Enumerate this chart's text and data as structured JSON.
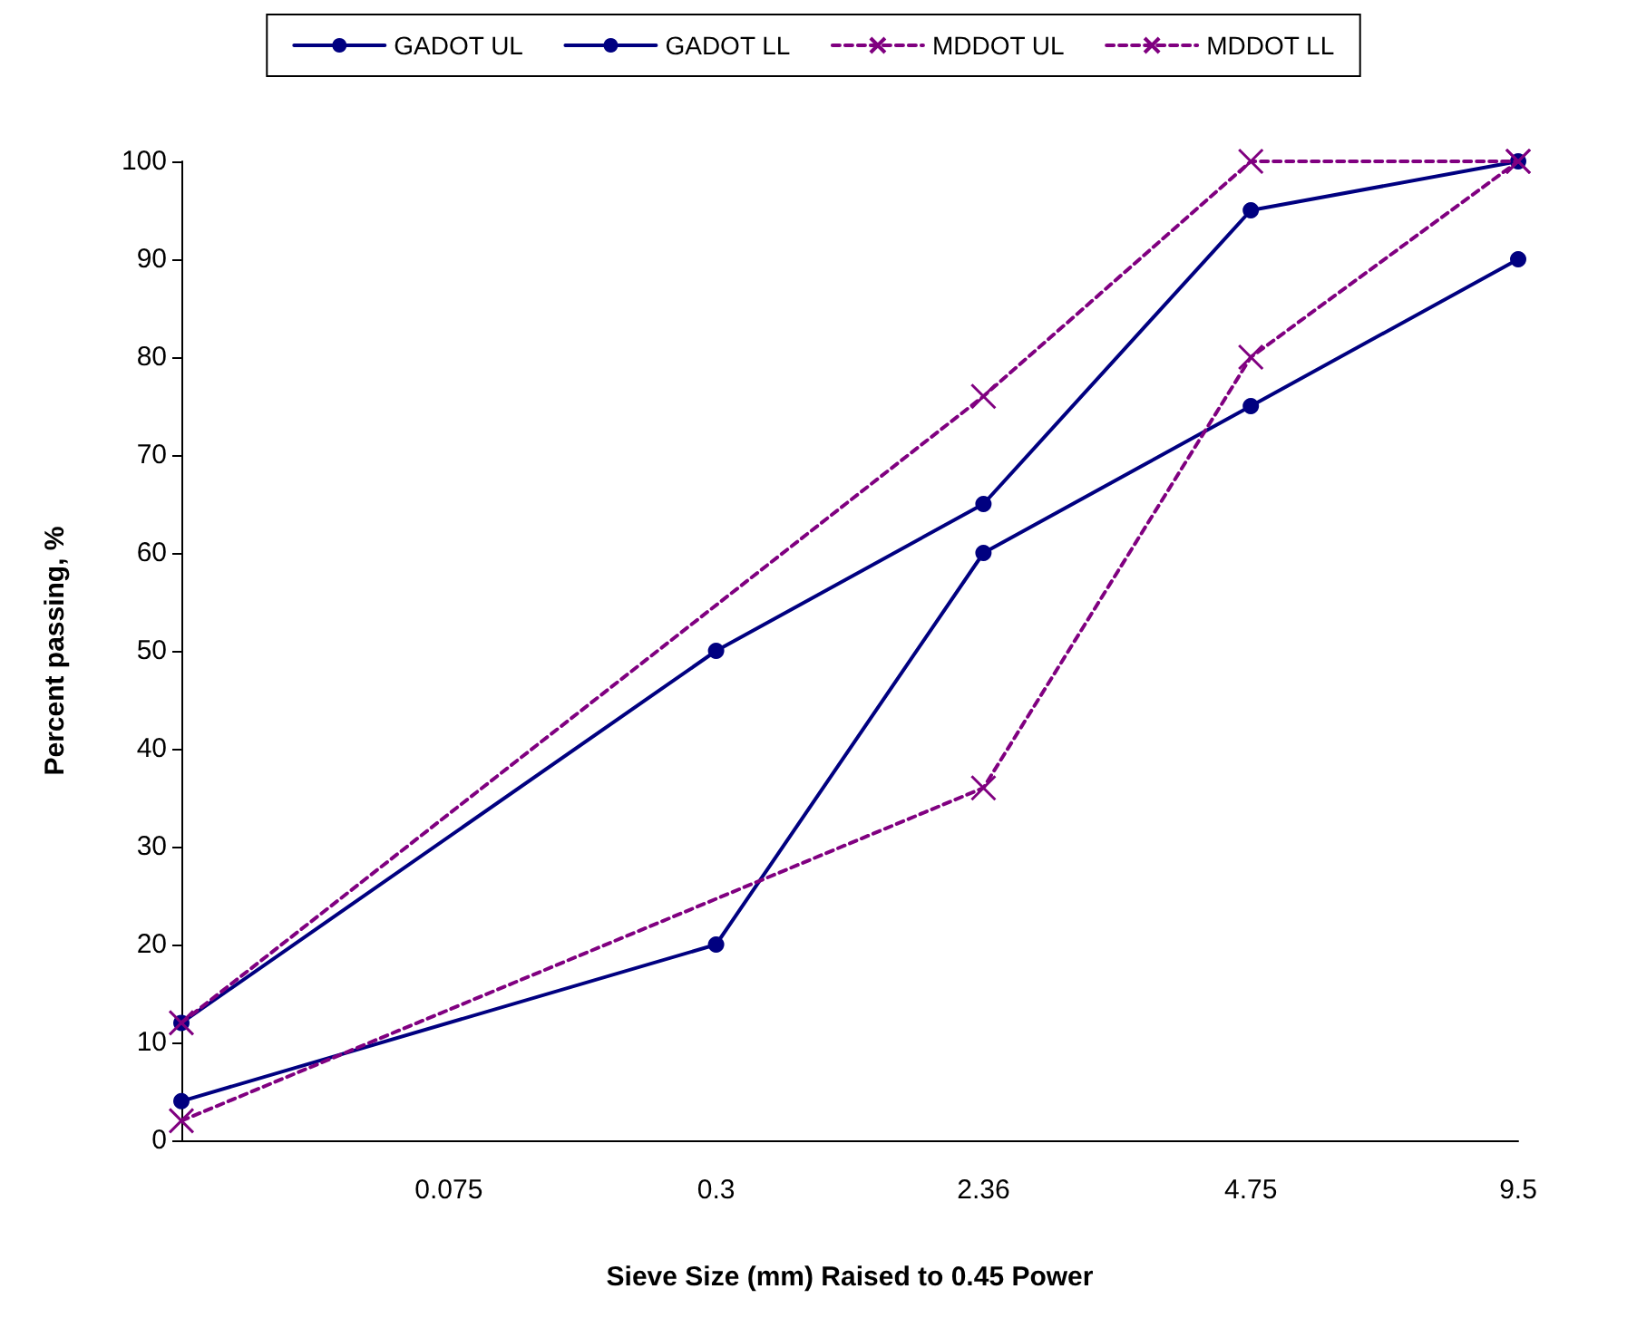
{
  "chart_data": {
    "type": "line",
    "xlabel": "Sieve Size (mm) Raised to 0.45 Power",
    "ylabel": "Percent passing, %",
    "categories": [
      null,
      "0.075",
      "0.3",
      "2.36",
      "4.75",
      "9.5"
    ],
    "ylim": [
      0,
      100
    ],
    "yticks": [
      0,
      10,
      20,
      30,
      40,
      50,
      60,
      70,
      80,
      90,
      100
    ],
    "grid": false,
    "legend": "top",
    "series": [
      {
        "name": "GADOT UL",
        "color": "#000080",
        "marker": "circle",
        "line_style": "solid",
        "values": [
          12,
          null,
          50,
          65,
          95,
          100
        ]
      },
      {
        "name": "GADOT LL",
        "color": "#000080",
        "marker": "circle",
        "line_style": "solid",
        "values": [
          4,
          null,
          20,
          60,
          75,
          90
        ]
      },
      {
        "name": "MDDOT UL",
        "color": "#800080",
        "marker": "cross",
        "line_style": "dashed",
        "values": [
          12,
          null,
          null,
          76,
          100,
          100
        ]
      },
      {
        "name": "MDDOT LL",
        "color": "#800080",
        "marker": "cross",
        "line_style": "dashed",
        "values": [
          2,
          null,
          null,
          36,
          80,
          100
        ]
      }
    ]
  }
}
